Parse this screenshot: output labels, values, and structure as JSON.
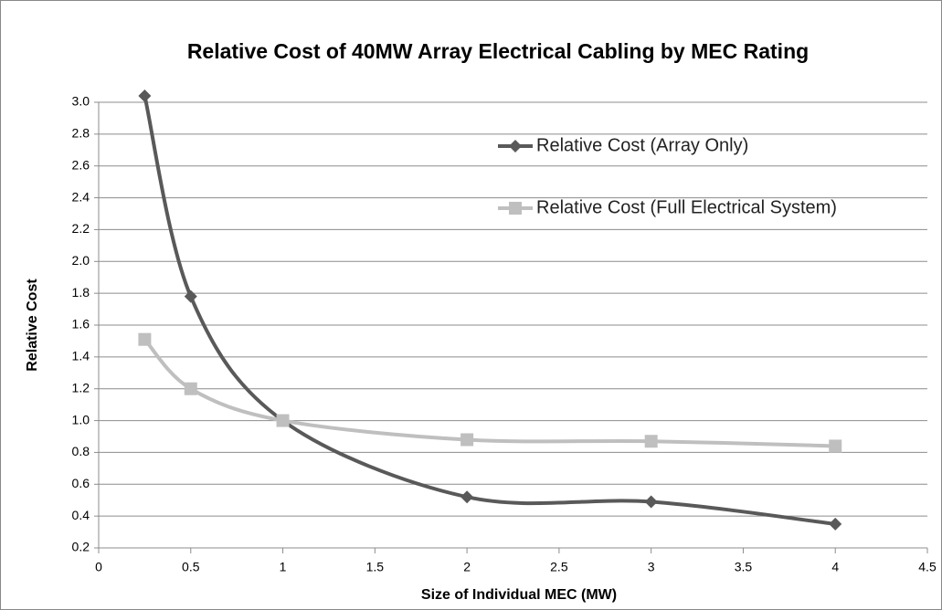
{
  "chart_data": {
    "type": "line",
    "title": "Relative Cost of 40MW Array Electrical Cabling by MEC Rating",
    "x_label": "Size of Individual MEC (MW)",
    "y_label": "Relative Cost",
    "x": [
      0.25,
      0.5,
      1,
      2,
      3,
      4
    ],
    "series": [
      {
        "name": "Relative Cost (Array Only)",
        "color": "#595959",
        "marker": "diamond",
        "values": [
          3.04,
          1.78,
          1.0,
          0.52,
          0.49,
          0.35
        ]
      },
      {
        "name": "Relative Cost (Full Electrical System)",
        "color": "#bfbfbf",
        "marker": "square",
        "values": [
          1.51,
          1.2,
          1.0,
          0.88,
          0.87,
          0.84
        ]
      }
    ],
    "xlim": [
      0,
      4.5
    ],
    "xticks": [
      0,
      0.5,
      1,
      1.5,
      2,
      2.5,
      3,
      3.5,
      4,
      4.5
    ],
    "ylim": [
      0.2,
      3.0
    ],
    "yticks": [
      0.2,
      0.4,
      0.6,
      0.8,
      {
        "value": 1,
        "label": "1.0"
      },
      1.2,
      1.4,
      1.6,
      1.8,
      {
        "value": 2,
        "label": "2.0"
      },
      2.2,
      2.4,
      2.6,
      2.8,
      {
        "value": 3,
        "label": "3.0"
      }
    ],
    "grid": true,
    "smooth": true,
    "legend": "upper right"
  }
}
